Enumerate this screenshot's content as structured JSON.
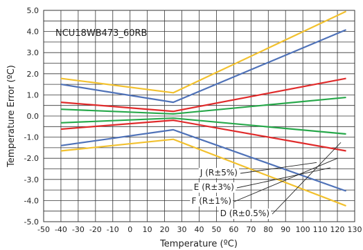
{
  "chart_data": {
    "type": "line",
    "title": "NCU18WB473_60RB",
    "xlabel": "Temperature (ºC)",
    "ylabel": "Temperature Error (ºC)",
    "xlim": [
      -50,
      130
    ],
    "ylim": [
      -5.0,
      5.0
    ],
    "xticks": [
      "-50",
      "-40",
      "-30",
      "-20",
      "-10",
      "0",
      "10",
      "20",
      "30",
      "40",
      "50",
      "60",
      "70",
      "80",
      "90",
      "100",
      "110",
      "120",
      "130"
    ],
    "yticks": [
      "5.0",
      "4.0",
      "3.0",
      "2.0",
      "1.0",
      "0.0",
      "-1.0",
      "-2.0",
      "-3.0",
      "-4.0",
      "-5.0"
    ],
    "grid": true,
    "series": [
      {
        "name": "J (R±5%)",
        "color": "#f2c12e",
        "upper": [
          [
            -40,
            1.78
          ],
          [
            25,
            1.1
          ],
          [
            125,
            4.95
          ]
        ],
        "lower": [
          [
            -40,
            -1.65
          ],
          [
            25,
            -1.1
          ],
          [
            125,
            -4.25
          ]
        ]
      },
      {
        "name": "E (R±3%)",
        "color": "#4f72b8",
        "upper": [
          [
            -40,
            1.5
          ],
          [
            25,
            0.65
          ],
          [
            125,
            4.08
          ]
        ],
        "lower": [
          [
            -40,
            -1.4
          ],
          [
            25,
            -0.65
          ],
          [
            125,
            -3.55
          ]
        ]
      },
      {
        "name": "F (R±1%)",
        "color": "#e02b2b",
        "upper": [
          [
            -40,
            0.65
          ],
          [
            25,
            0.22
          ],
          [
            125,
            1.78
          ]
        ],
        "lower": [
          [
            -40,
            -0.62
          ],
          [
            25,
            -0.2
          ],
          [
            125,
            -1.65
          ]
        ]
      },
      {
        "name": "D (R±0.5%)",
        "color": "#27a84a",
        "upper": [
          [
            -40,
            0.32
          ],
          [
            25,
            0.1
          ],
          [
            125,
            0.88
          ]
        ],
        "lower": [
          [
            -40,
            -0.32
          ],
          [
            25,
            -0.1
          ],
          [
            125,
            -0.85
          ]
        ]
      }
    ],
    "annotations": [
      "J (R±5%)",
      "E (R±3%)",
      "F (R±1%)",
      "D (R±0.5%)"
    ]
  }
}
